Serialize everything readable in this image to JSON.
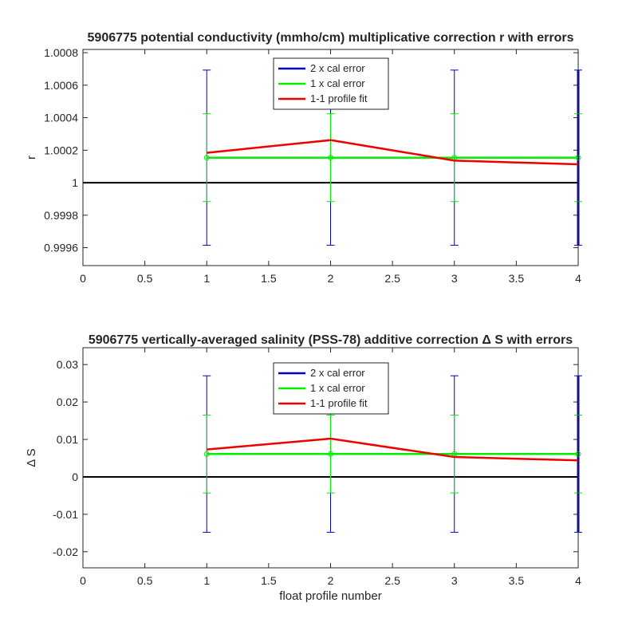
{
  "chart_data": [
    {
      "type": "line",
      "title": "5906775 potential conductivity (mmho/cm) multiplicative correction r with errors",
      "xlabel": "",
      "ylabel": "r",
      "xlim": [
        0,
        4
      ],
      "ylim": [
        0.99949,
        1.00082
      ],
      "xticks": [
        0,
        0.5,
        1,
        1.5,
        2,
        2.5,
        3,
        3.5,
        4
      ],
      "xtick_labels": [
        "0",
        "0.5",
        "1",
        "1.5",
        "2",
        "2.5",
        "3",
        "3.5",
        "4"
      ],
      "yticks": [
        0.9996,
        0.9998,
        1,
        1.0002,
        1.0004,
        1.0006,
        1.0008
      ],
      "ytick_labels": [
        "0.9996",
        "0.9998",
        "1",
        "1.0002",
        "1.0004",
        "1.0006",
        "1.0008"
      ],
      "reference_line": 1,
      "grid": false,
      "legend_position": "top-center",
      "x": [
        1,
        2,
        3,
        4
      ],
      "series": [
        {
          "name": "2 x cal error",
          "color": "#0000cc",
          "kind": "errorbar",
          "y": [
            1.000154,
            1.000154,
            1.000154,
            1.000154
          ],
          "err": [
            0.000539,
            0.000539,
            0.000539,
            0.000539
          ]
        },
        {
          "name": "1 x cal error",
          "color": "#00ee00",
          "kind": "errorbar-line",
          "y": [
            1.000154,
            1.000154,
            1.000154,
            1.000154
          ],
          "err": [
            0.00027,
            0.00027,
            0.00027,
            0.00027
          ]
        },
        {
          "name": "1-1 profile fit",
          "color": "#ee0000",
          "kind": "line",
          "y": [
            1.000184,
            1.000262,
            1.000136,
            1.000113
          ]
        }
      ]
    },
    {
      "type": "line",
      "title": "5906775 vertically-averaged salinity (PSS-78) additive correction Δ S with errors",
      "xlabel": "float profile number",
      "ylabel": "Δ S",
      "xlim": [
        0,
        4
      ],
      "ylim": [
        -0.0243,
        0.0345
      ],
      "xticks": [
        0,
        0.5,
        1,
        1.5,
        2,
        2.5,
        3,
        3.5,
        4
      ],
      "xtick_labels": [
        "0",
        "0.5",
        "1",
        "1.5",
        "2",
        "2.5",
        "3",
        "3.5",
        "4"
      ],
      "yticks": [
        -0.02,
        -0.01,
        0,
        0.01,
        0.02,
        0.03
      ],
      "ytick_labels": [
        "-0.02",
        "-0.01",
        "0",
        "0.01",
        "0.02",
        "0.03"
      ],
      "reference_line": 0,
      "grid": false,
      "legend_position": "top-center",
      "x": [
        1,
        2,
        3,
        4
      ],
      "series": [
        {
          "name": "2 x cal error",
          "color": "#0000cc",
          "kind": "errorbar",
          "y": [
            0.0061,
            0.0061,
            0.0061,
            0.0061
          ],
          "err": [
            0.0209,
            0.0209,
            0.0209,
            0.0209
          ]
        },
        {
          "name": "1 x cal error",
          "color": "#00ee00",
          "kind": "errorbar-line",
          "y": [
            0.0061,
            0.0061,
            0.0061,
            0.0061
          ],
          "err": [
            0.0104,
            0.0104,
            0.0104,
            0.0104
          ]
        },
        {
          "name": "1-1 profile fit",
          "color": "#ee0000",
          "kind": "line",
          "y": [
            0.0073,
            0.0102,
            0.0053,
            0.0044
          ]
        }
      ]
    }
  ]
}
